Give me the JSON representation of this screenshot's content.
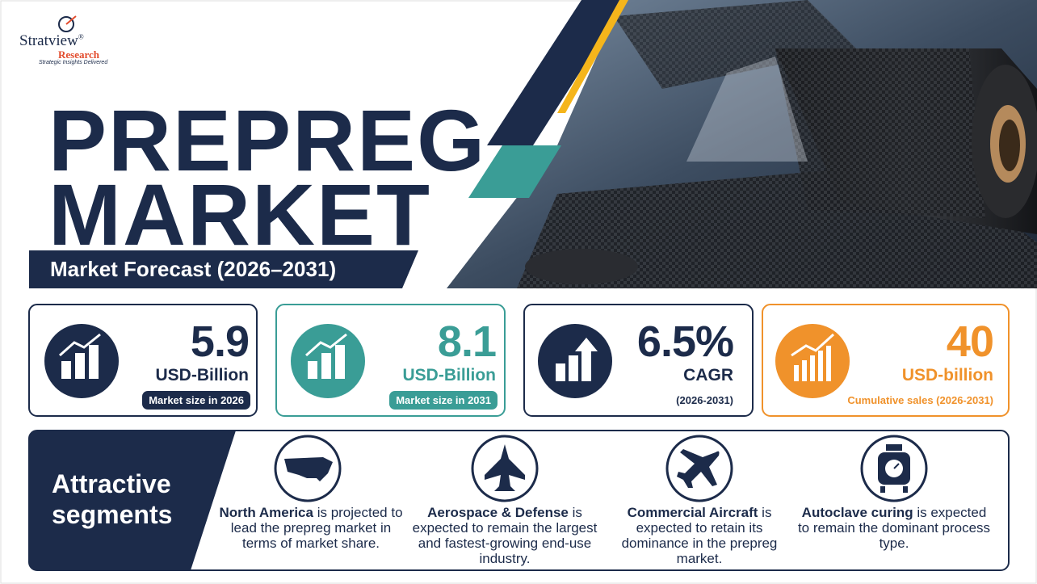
{
  "logo": {
    "name": "Stratview",
    "mark": "®",
    "name2": "Research",
    "tagline": "Strategic Insights Delivered"
  },
  "header": {
    "title_line1": "PREPREG",
    "title_line2": "MARKET",
    "subtitle": "Market Forecast (2026–2031)"
  },
  "stats": [
    {
      "value": "5.9",
      "unit": "USD-Billion",
      "label": "Market size in 2026"
    },
    {
      "value": "8.1",
      "unit": "USD-Billion",
      "label": "Market size in 2031"
    },
    {
      "value": "6.5%",
      "unit": "CAGR",
      "label": "(2026-2031)"
    },
    {
      "value": "40",
      "unit": "USD-billion",
      "label": "Cumulative sales (2026-2031)"
    }
  ],
  "segments": {
    "heading_line1": "Attractive",
    "heading_line2": "segments",
    "items": [
      {
        "bold": "North America",
        "text": " is projected to lead the prepreg market in terms of market share."
      },
      {
        "bold": "Aerospace & Defense",
        "text": " is expected to remain the largest and fastest-growing end-use industry."
      },
      {
        "bold": "Commercial Aircraft",
        "text": " is expected to retain its dominance in the prepreg market."
      },
      {
        "bold": "Autoclave curing",
        "text": " is expected to remain the dominant process type."
      }
    ]
  }
}
